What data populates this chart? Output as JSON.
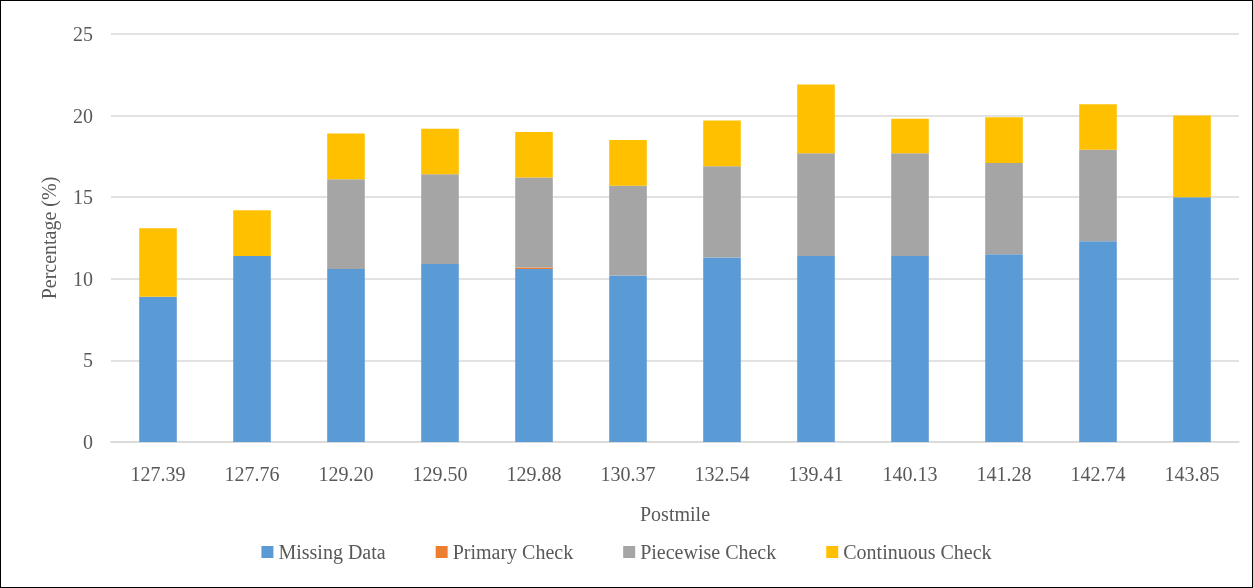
{
  "chart_data": {
    "type": "bar",
    "stacked": true,
    "xlabel": "Postmile",
    "ylabel": "Percentage (%)",
    "categories": [
      "127.39",
      "127.76",
      "129.20",
      "129.50",
      "129.88",
      "130.37",
      "132.54",
      "139.41",
      "140.13",
      "141.28",
      "142.74",
      "143.85"
    ],
    "series": [
      {
        "name": "Missing Data",
        "color": "#5b9bd5",
        "values": [
          8.9,
          11.4,
          10.6,
          10.9,
          10.6,
          10.2,
          11.3,
          11.4,
          11.4,
          11.5,
          12.3,
          15.0
        ]
      },
      {
        "name": "Primary Check",
        "color": "#ed7d31",
        "values": [
          0,
          0,
          0,
          0,
          0.1,
          0,
          0,
          0,
          0,
          0,
          0,
          0
        ]
      },
      {
        "name": "Piecewise Check",
        "color": "#a5a5a5",
        "values": [
          0,
          0,
          5.5,
          5.5,
          5.5,
          5.5,
          5.6,
          6.3,
          6.3,
          5.6,
          5.6,
          0
        ]
      },
      {
        "name": "Continuous Check",
        "color": "#ffc000",
        "values": [
          4.2,
          2.8,
          2.8,
          2.8,
          2.8,
          2.8,
          2.8,
          4.2,
          2.1,
          2.8,
          2.8,
          5.0
        ]
      }
    ],
    "ylim": [
      0,
      25
    ],
    "yticks": [
      0,
      5,
      10,
      15,
      20,
      25
    ],
    "grid": "y",
    "legend": "bottom"
  }
}
